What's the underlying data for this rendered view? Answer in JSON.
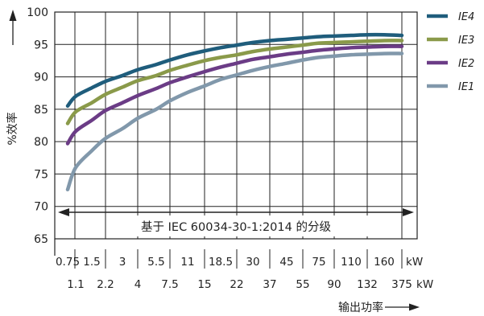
{
  "chart_data": {
    "type": "line",
    "ylabel": "%效率",
    "xlabel": "输出功率",
    "ylim": [
      65,
      100
    ],
    "yticks": [
      "100",
      "95",
      "90",
      "85",
      "80",
      "75",
      "70",
      "65"
    ],
    "x_scale": "categorical (one category per gridline)",
    "x_units": "kW",
    "x_categories_top": [
      "0.75",
      "1.5",
      "3",
      "5.5",
      "11",
      "18.5",
      "30",
      "45",
      "75",
      "110",
      "160"
    ],
    "x_categories_bottom": [
      "1.1",
      "2.2",
      "4",
      "7.5",
      "15",
      "22",
      "37",
      "55",
      "90",
      "132",
      "375"
    ],
    "x_unit_top": "kW",
    "x_unit_bottom": "kW",
    "annotation": "基于 IEC 60034-30-1:2014 的分级",
    "legend_position": "right",
    "grid": true,
    "colors": {
      "IE4": "#1f5d7c",
      "IE3": "#8a9a4a",
      "IE2": "#6b3c86",
      "IE1": "#8198ab",
      "axis": "#222222"
    },
    "series": [
      {
        "name": "IE4",
        "x": [
          "0.75",
          "1.1",
          "1.5",
          "2.2",
          "3",
          "4",
          "5.5",
          "7.5",
          "11",
          "15",
          "18.5",
          "22",
          "30",
          "37",
          "45",
          "55",
          "75",
          "90",
          "110",
          "132",
          "160",
          "375"
        ],
        "values": [
          85.5,
          87.0,
          88.3,
          89.3,
          90.2,
          91.1,
          91.9,
          92.6,
          93.4,
          94.0,
          94.5,
          94.9,
          95.3,
          95.6,
          95.8,
          96.0,
          96.2,
          96.3,
          96.4,
          96.5,
          96.5,
          96.4
        ]
      },
      {
        "name": "IE3",
        "x": [
          "0.75",
          "1.1",
          "1.5",
          "2.2",
          "3",
          "4",
          "5.5",
          "7.5",
          "11",
          "15",
          "18.5",
          "22",
          "30",
          "37",
          "45",
          "55",
          "75",
          "90",
          "110",
          "132",
          "160",
          "375"
        ],
        "values": [
          82.8,
          84.6,
          86.0,
          87.3,
          88.4,
          89.4,
          90.2,
          91.0,
          91.8,
          92.5,
          93.0,
          93.4,
          93.9,
          94.3,
          94.6,
          94.9,
          95.2,
          95.3,
          95.4,
          95.5,
          95.6,
          95.6
        ]
      },
      {
        "name": "IE2",
        "x": [
          "0.75",
          "1.1",
          "1.5",
          "2.2",
          "3",
          "4",
          "5.5",
          "7.5",
          "11",
          "15",
          "18.5",
          "22",
          "30",
          "37",
          "45",
          "55",
          "75",
          "90",
          "110",
          "132",
          "160",
          "375"
        ],
        "values": [
          79.7,
          81.6,
          83.3,
          84.8,
          86.0,
          87.1,
          88.2,
          89.1,
          90.0,
          90.8,
          91.5,
          92.1,
          92.7,
          93.1,
          93.5,
          93.8,
          94.1,
          94.3,
          94.5,
          94.6,
          94.7,
          94.7
        ]
      },
      {
        "name": "IE1",
        "x": [
          "0.75",
          "1.1",
          "1.5",
          "2.2",
          "3",
          "4",
          "5.5",
          "7.5",
          "11",
          "15",
          "18.5",
          "22",
          "30",
          "37",
          "45",
          "55",
          "75",
          "90",
          "110",
          "132",
          "160",
          "375"
        ],
        "values": [
          72.6,
          76.0,
          78.6,
          80.5,
          82.0,
          83.6,
          85.0,
          86.3,
          87.6,
          88.6,
          89.6,
          90.3,
          91.0,
          91.6,
          92.1,
          92.6,
          93.0,
          93.2,
          93.4,
          93.5,
          93.6,
          93.6
        ]
      }
    ]
  }
}
